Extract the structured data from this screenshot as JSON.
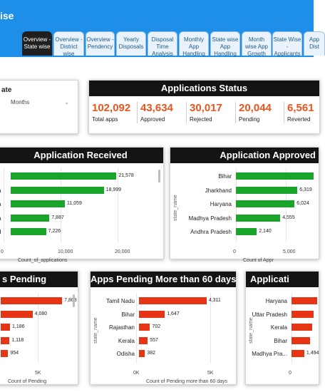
{
  "app": {
    "title": "ise"
  },
  "tabs": [
    {
      "label": "Overview - State wise",
      "active": true
    },
    {
      "label": "Overview - District wise"
    },
    {
      "label": "Overview - Pendency"
    },
    {
      "label": "Yearly Disposals"
    },
    {
      "label": "Disposal Time Analysis"
    },
    {
      "label": "Monthly App Handling"
    },
    {
      "label": "State wise App Handling"
    },
    {
      "label": "Month wise App Growth"
    },
    {
      "label": "State Wise - Applicants"
    },
    {
      "label": "App Dist"
    }
  ],
  "filter": {
    "label": "ate",
    "dropdown_value": "Months"
  },
  "status": {
    "title": "Applications Status",
    "items": [
      {
        "value": "102,092",
        "label": "Total apps"
      },
      {
        "value": "43,634",
        "label": "Approved"
      },
      {
        "value": "30,017",
        "label": "Rejected"
      },
      {
        "value": "20,044",
        "label": "Pending"
      },
      {
        "value": "6,561",
        "label": "Reverted"
      }
    ]
  },
  "chart_data": [
    {
      "type": "bar",
      "orientation": "horizontal",
      "title": "Application Received",
      "categories": [
        "r",
        "a",
        "a",
        "a",
        "d"
      ],
      "values": [
        21578,
        18999,
        11059,
        7887,
        7226
      ],
      "value_labels": [
        "21,578",
        "18,999",
        "11,059",
        "7,887",
        "7,226"
      ],
      "xlabel": "Count_of_applications",
      "xticks": [
        "0",
        "10,000",
        "20,000"
      ],
      "xlim": [
        0,
        24000
      ]
    },
    {
      "type": "bar",
      "orientation": "horizontal",
      "title": "Application Approved",
      "categories": [
        "Bihar",
        "Jharkhand",
        "Haryana",
        "Madhya Pradesh",
        "Andhra Pradesh"
      ],
      "values": [
        8000,
        6319,
        6024,
        4555,
        2140
      ],
      "value_labels": [
        "",
        "6,319",
        "6,024",
        "4,555",
        "2,140"
      ],
      "xlabel": "Count of Appr",
      "ylabel": "state_name",
      "xticks": [
        "0",
        "5,000"
      ],
      "xlim": [
        0,
        8200
      ]
    },
    {
      "type": "bar",
      "orientation": "horizontal",
      "title": "s Pending",
      "categories": [
        "",
        "",
        "",
        "",
        ""
      ],
      "values": [
        7868,
        4080,
        1186,
        1118,
        954
      ],
      "value_labels": [
        "7,868",
        "4,080",
        "1,186",
        "1,118",
        "954"
      ],
      "xlabel": "Count of Pending",
      "xticks": [
        "5K"
      ],
      "xlim": [
        0,
        8400
      ]
    },
    {
      "type": "bar",
      "orientation": "horizontal",
      "title": "Apps Pending More than 60 days",
      "categories": [
        "Tamil Nadu",
        "Bihar",
        "Rajasthan",
        "Kerala",
        "Odisha"
      ],
      "values": [
        4311,
        1647,
        702,
        557,
        382
      ],
      "value_labels": [
        "4,311",
        "1,647",
        "702",
        "557",
        "382"
      ],
      "xlabel": "Count of Pending more than 60 days",
      "ylabel": "state_name",
      "xticks": [
        "0K",
        "5K"
      ],
      "xlim": [
        0,
        5000
      ]
    },
    {
      "type": "bar",
      "orientation": "horizontal",
      "title": "Applicati",
      "categories": [
        "Haryana",
        "Uttar Pradesh",
        "Kerala",
        "Bihar",
        "Madhya Pra..."
      ],
      "values": [
        3000,
        2600,
        2400,
        2200,
        1494
      ],
      "value_labels": [
        "",
        "",
        "",
        "",
        "1,494"
      ],
      "ylabel": "state_name",
      "xticks": [
        "0"
      ],
      "xlim": [
        0,
        3000
      ]
    }
  ]
}
